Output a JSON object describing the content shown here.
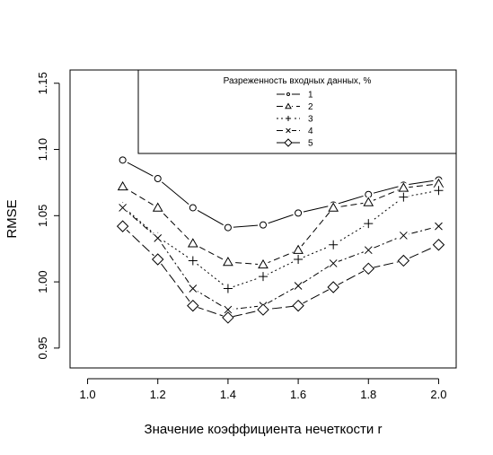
{
  "chart_data": {
    "type": "line",
    "xlabel": "Значение коэффициента нечеткости r",
    "ylabel": "RMSE",
    "xlim": [
      0.95,
      2.05
    ],
    "ylim": [
      0.935,
      1.16
    ],
    "x_ticks": [
      "1.0",
      "1.2",
      "1.4",
      "1.6",
      "1.8",
      "2.0"
    ],
    "x_tick_values": [
      1.0,
      1.2,
      1.4,
      1.6,
      1.8,
      2.0
    ],
    "y_ticks": [
      "0.95",
      "1.00",
      "1.05",
      "1.10",
      "1.15"
    ],
    "y_tick_values": [
      0.95,
      1.0,
      1.05,
      1.1,
      1.15
    ],
    "x": [
      1.1,
      1.2,
      1.3,
      1.4,
      1.5,
      1.6,
      1.7,
      1.8,
      1.9,
      2.0
    ],
    "legend": {
      "title": "Разреженность входных данных, %",
      "placement": "top-right"
    },
    "series": [
      {
        "name": "1",
        "marker": "circle",
        "dash": "",
        "values": [
          1.092,
          1.078,
          1.056,
          1.041,
          1.043,
          1.052,
          1.058,
          1.066,
          1.073,
          1.077
        ]
      },
      {
        "name": "2",
        "marker": "triangle",
        "dash": "7,4",
        "values": [
          1.072,
          1.056,
          1.029,
          1.015,
          1.013,
          1.024,
          1.056,
          1.06,
          1.071,
          1.074
        ]
      },
      {
        "name": "3",
        "marker": "plus",
        "dash": "2,3",
        "values": [
          1.057,
          1.034,
          1.016,
          0.995,
          1.004,
          1.017,
          1.028,
          1.044,
          1.064,
          1.069
        ]
      },
      {
        "name": "4",
        "marker": "cross",
        "dash": "7,3,2,3",
        "values": [
          1.056,
          1.033,
          0.995,
          0.979,
          0.982,
          0.997,
          1.014,
          1.024,
          1.035,
          1.042
        ]
      },
      {
        "name": "5",
        "marker": "diamond",
        "dash": "11,4",
        "values": [
          1.042,
          1.017,
          0.982,
          0.973,
          0.979,
          0.982,
          0.996,
          1.01,
          1.016,
          1.028
        ]
      }
    ]
  }
}
